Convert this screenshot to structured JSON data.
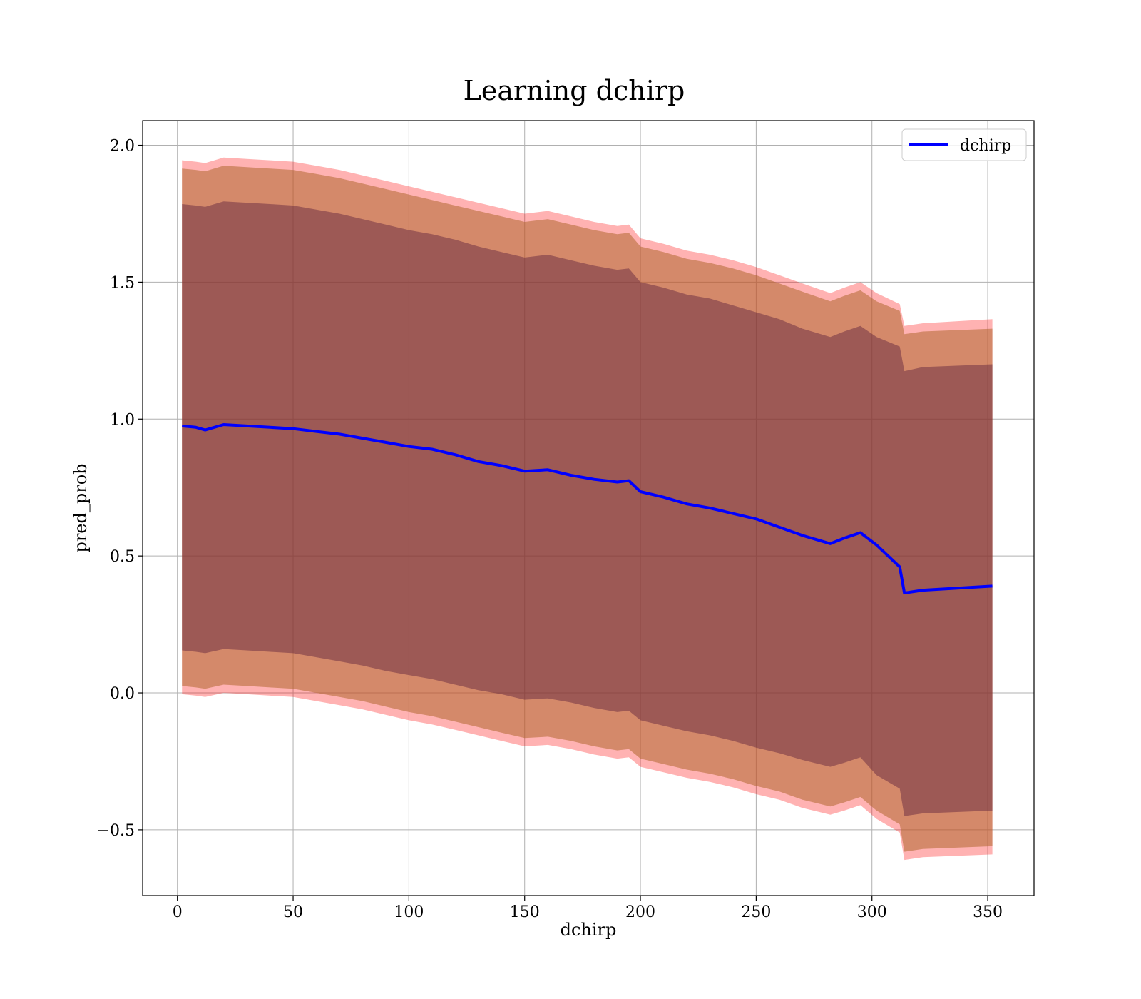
{
  "chart_data": {
    "type": "line",
    "title": "Learning dchirp",
    "xlabel": "dchirp",
    "ylabel": "pred_prob",
    "xlim": [
      -15,
      370
    ],
    "ylim": [
      -0.74,
      2.09
    ],
    "xticks": [
      0,
      50,
      100,
      150,
      200,
      250,
      300,
      350
    ],
    "yticks": [
      -0.5,
      0.0,
      0.5,
      1.0,
      1.5,
      2.0
    ],
    "xtick_labels": [
      "0",
      "50",
      "100",
      "150",
      "200",
      "250",
      "300",
      "350"
    ],
    "ytick_labels": [
      "−0.5",
      "0.0",
      "0.5",
      "1.0",
      "1.5",
      "2.0"
    ],
    "grid": true,
    "legend": {
      "position": "top-right",
      "entries": [
        "dchirp"
      ]
    },
    "colors": {
      "line": "#0000ff",
      "band": "#ff0000",
      "inner": "#5a1e3c",
      "middle": "#b0682f"
    },
    "series": [
      {
        "name": "dchirp",
        "x": [
          2,
          8,
          12,
          20,
          30,
          40,
          50,
          60,
          70,
          80,
          90,
          100,
          110,
          120,
          130,
          140,
          150,
          160,
          170,
          180,
          190,
          195,
          200,
          210,
          220,
          230,
          240,
          250,
          260,
          270,
          282,
          288,
          295,
          302,
          312,
          314,
          322,
          352
        ],
        "y": [
          0.975,
          0.97,
          0.96,
          0.98,
          0.975,
          0.97,
          0.965,
          0.955,
          0.945,
          0.93,
          0.915,
          0.9,
          0.89,
          0.87,
          0.845,
          0.83,
          0.81,
          0.815,
          0.795,
          0.78,
          0.77,
          0.775,
          0.735,
          0.715,
          0.69,
          0.675,
          0.655,
          0.635,
          0.605,
          0.575,
          0.545,
          0.565,
          0.585,
          0.54,
          0.46,
          0.365,
          0.375,
          0.39
        ],
        "bands": [
          {
            "level": "inner",
            "upper": [
              1.785,
              1.78,
              1.775,
              1.795,
              1.79,
              1.785,
              1.78,
              1.765,
              1.75,
              1.73,
              1.71,
              1.69,
              1.675,
              1.655,
              1.63,
              1.61,
              1.59,
              1.6,
              1.58,
              1.56,
              1.545,
              1.55,
              1.5,
              1.48,
              1.455,
              1.44,
              1.415,
              1.39,
              1.365,
              1.33,
              1.3,
              1.32,
              1.34,
              1.3,
              1.265,
              1.175,
              1.19,
              1.2
            ],
            "lower": [
              0.155,
              0.15,
              0.145,
              0.16,
              0.155,
              0.15,
              0.145,
              0.13,
              0.115,
              0.1,
              0.08,
              0.065,
              0.05,
              0.03,
              0.01,
              -0.005,
              -0.025,
              -0.02,
              -0.035,
              -0.055,
              -0.07,
              -0.065,
              -0.1,
              -0.12,
              -0.14,
              -0.155,
              -0.175,
              -0.2,
              -0.22,
              -0.245,
              -0.27,
              -0.255,
              -0.235,
              -0.3,
              -0.35,
              -0.45,
              -0.44,
              -0.43
            ]
          },
          {
            "level": "middle",
            "upper": [
              1.915,
              1.91,
              1.905,
              1.925,
              1.92,
              1.915,
              1.91,
              1.895,
              1.88,
              1.86,
              1.84,
              1.82,
              1.8,
              1.78,
              1.76,
              1.74,
              1.72,
              1.73,
              1.71,
              1.69,
              1.675,
              1.68,
              1.63,
              1.61,
              1.585,
              1.57,
              1.55,
              1.525,
              1.495,
              1.465,
              1.43,
              1.45,
              1.47,
              1.43,
              1.395,
              1.31,
              1.32,
              1.33
            ],
            "lower": [
              0.025,
              0.02,
              0.015,
              0.03,
              0.025,
              0.02,
              0.015,
              0.0,
              -0.015,
              -0.03,
              -0.05,
              -0.07,
              -0.085,
              -0.105,
              -0.125,
              -0.145,
              -0.165,
              -0.16,
              -0.175,
              -0.195,
              -0.21,
              -0.205,
              -0.24,
              -0.26,
              -0.28,
              -0.295,
              -0.315,
              -0.34,
              -0.36,
              -0.39,
              -0.415,
              -0.4,
              -0.38,
              -0.43,
              -0.48,
              -0.58,
              -0.57,
              -0.56
            ]
          },
          {
            "level": "outer",
            "upper": [
              1.945,
              1.94,
              1.935,
              1.955,
              1.95,
              1.945,
              1.94,
              1.925,
              1.91,
              1.89,
              1.87,
              1.85,
              1.83,
              1.81,
              1.79,
              1.77,
              1.75,
              1.76,
              1.74,
              1.72,
              1.705,
              1.71,
              1.66,
              1.64,
              1.615,
              1.6,
              1.58,
              1.555,
              1.525,
              1.495,
              1.46,
              1.48,
              1.5,
              1.46,
              1.42,
              1.34,
              1.35,
              1.365
            ],
            "lower": [
              -0.005,
              -0.01,
              -0.015,
              0.0,
              -0.005,
              -0.01,
              -0.015,
              -0.03,
              -0.045,
              -0.06,
              -0.08,
              -0.1,
              -0.115,
              -0.135,
              -0.155,
              -0.175,
              -0.195,
              -0.19,
              -0.205,
              -0.225,
              -0.24,
              -0.235,
              -0.27,
              -0.29,
              -0.31,
              -0.325,
              -0.345,
              -0.37,
              -0.39,
              -0.42,
              -0.445,
              -0.43,
              -0.41,
              -0.46,
              -0.51,
              -0.61,
              -0.6,
              -0.59
            ]
          }
        ]
      }
    ]
  }
}
